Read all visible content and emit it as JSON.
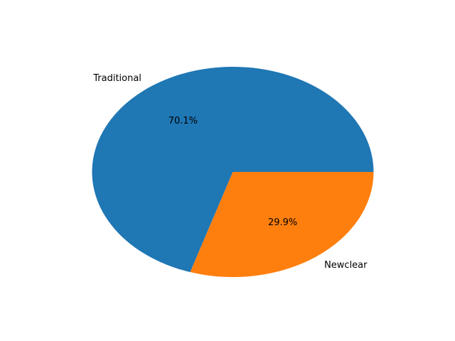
{
  "chart_data": {
    "type": "pie",
    "title": "",
    "categories": [
      "Traditional",
      "Newclear"
    ],
    "values": [
      70.1,
      29.9
    ],
    "value_labels": [
      "70.1%",
      "29.9%"
    ],
    "colors": [
      "#1f77b4",
      "#ff7f0e"
    ]
  }
}
